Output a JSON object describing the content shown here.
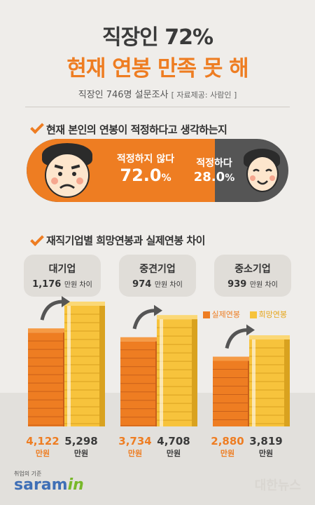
{
  "header": {
    "title_line1": "직장인 72%",
    "title_line2": "현재 연봉 만족 못 해",
    "subtitle": "직장인 746명 설문조사",
    "source": "[ 자료제공: 사람인 ]"
  },
  "section1": {
    "heading": "현재 본인의 연봉이 적정하다고 생각하는지",
    "not_adequate": {
      "label": "적정하지 않다",
      "value": "72.0",
      "unit": "%",
      "number": 72.0
    },
    "adequate": {
      "label": "적정하다",
      "value": "28.0",
      "unit": "%",
      "number": 28.0
    }
  },
  "section2": {
    "heading": "재직기업별 희망연봉과 실제연봉 차이",
    "legend": {
      "actual": "실제연봉",
      "desired": "희망연봉"
    },
    "companies": [
      {
        "name": "대기업",
        "diff": "1,176",
        "diff_unit": "만원 차이",
        "actual": "4,122",
        "desired": "5,298",
        "unit": "만원"
      },
      {
        "name": "중견기업",
        "diff": "974",
        "diff_unit": "만원 차이",
        "actual": "3,734",
        "desired": "4,708",
        "unit": "만원"
      },
      {
        "name": "중소기업",
        "diff": "939",
        "diff_unit": "만원 차이",
        "actual": "2,880",
        "desired": "3,819",
        "unit": "만원"
      }
    ]
  },
  "colors": {
    "orange": "#ee7d22",
    "yellow": "#f7c33c",
    "dark": "#555555"
  },
  "logo": {
    "tagline": "취업의 기준",
    "name_main": "saram",
    "name_accent": "in"
  },
  "watermark": "대한뉴스",
  "chart_data": {
    "type": "bar",
    "categories": [
      "대기업",
      "중견기업",
      "중소기업"
    ],
    "series": [
      {
        "name": "실제연봉",
        "values": [
          4122,
          3734,
          2880
        ]
      },
      {
        "name": "희망연봉",
        "values": [
          5298,
          4708,
          3819
        ]
      }
    ],
    "title": "재직기업별 희망연봉과 실제연봉 차이",
    "ylabel": "",
    "legend": "top-right"
  }
}
